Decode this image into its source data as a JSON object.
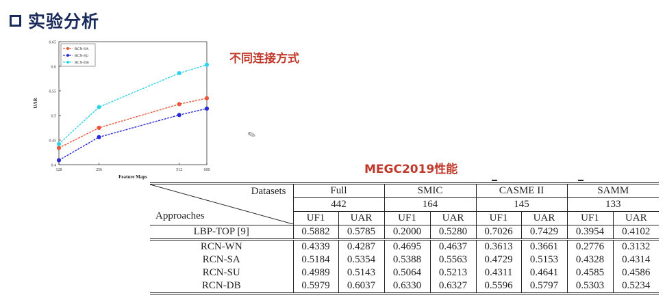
{
  "header": {
    "title": "实验分析"
  },
  "labels": {
    "chart_caption": "不同连接方式",
    "table_caption": "MEGC2019性能"
  },
  "chart_data": {
    "type": "line",
    "xlabel": "Feature Maps",
    "ylabel": "UAR",
    "x": [
      128,
      256,
      512,
      600
    ],
    "xticks": [
      "128",
      "256",
      "512",
      "600"
    ],
    "ylim": [
      0.4,
      0.65
    ],
    "yticks": [
      "0.4",
      "0.45",
      "0.5",
      "0.55",
      "0.6",
      "0.65"
    ],
    "legend_position": "top-left",
    "grid": false,
    "series": [
      {
        "name": "RCN-SA",
        "color": "#e8573a",
        "values": [
          0.434,
          0.475,
          0.523,
          0.535
        ]
      },
      {
        "name": "RCN-SU",
        "color": "#2b2bd6",
        "values": [
          0.409,
          0.456,
          0.501,
          0.514
        ]
      },
      {
        "name": "RCN-DB",
        "color": "#2ed3ea",
        "values": [
          0.442,
          0.517,
          0.586,
          0.603
        ]
      }
    ]
  },
  "table": {
    "datasets_label": "Datasets",
    "approaches_label": "Approaches",
    "groups": [
      {
        "name": "Full",
        "count": "442"
      },
      {
        "name": "SMIC",
        "count": "164"
      },
      {
        "name": "CASME II",
        "count": "145"
      },
      {
        "name": "SAMM",
        "count": "133"
      }
    ],
    "metrics": [
      "UF1",
      "UAR",
      "UF1",
      "UAR",
      "UF1",
      "UAR",
      "UF1",
      "UAR"
    ],
    "baseline": {
      "name": "LBP-TOP [9]",
      "values": [
        "0.5882",
        "0.5785",
        "0.2000",
        "0.5280",
        "0.7026",
        "0.7429",
        "0.3954",
        "0.4102"
      ]
    },
    "rows": [
      {
        "name": "RCN-WN",
        "values": [
          "0.4339",
          "0.4287",
          "0.4695",
          "0.4637",
          "0.3613",
          "0.3661",
          "0.2776",
          "0.3132"
        ]
      },
      {
        "name": "RCN-SA",
        "values": [
          "0.5184",
          "0.5354",
          "0.5388",
          "0.5563",
          "0.4729",
          "0.5153",
          "0.4328",
          "0.4314"
        ]
      },
      {
        "name": "RCN-SU",
        "values": [
          "0.4989",
          "0.5143",
          "0.5064",
          "0.5213",
          "0.4311",
          "0.4641",
          "0.4585",
          "0.4586"
        ]
      },
      {
        "name": "RCN-DB",
        "values": [
          "0.5979",
          "0.6037",
          "0.6330",
          "0.6327",
          "0.5596",
          "0.5797",
          "0.5303",
          "0.5234"
        ]
      }
    ]
  }
}
